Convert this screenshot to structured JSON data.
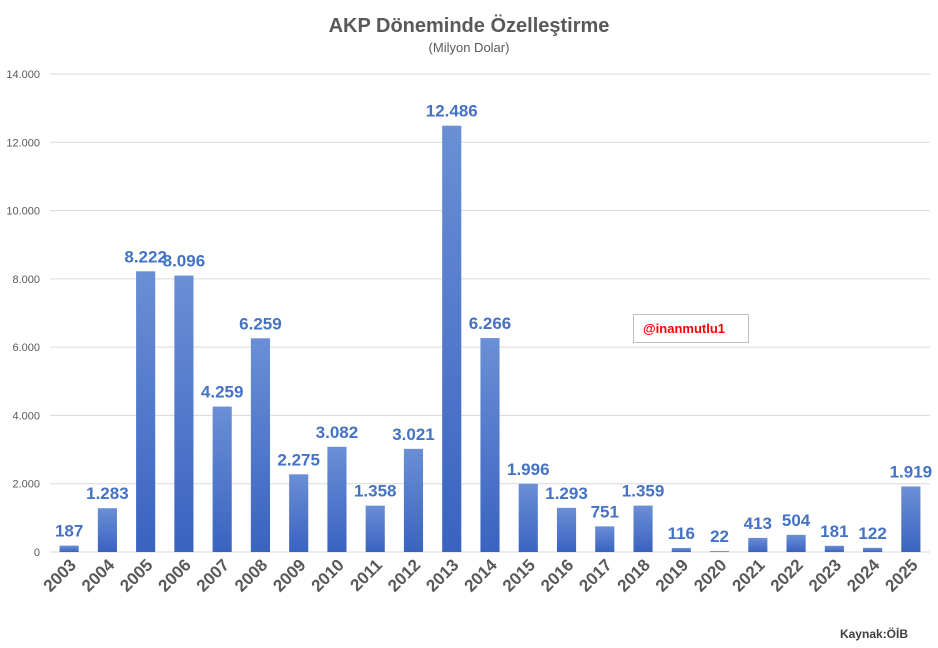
{
  "chart_data": {
    "type": "bar",
    "title": "AKP Döneminde Özelleştirme",
    "subtitle": "(Milyon Dolar)",
    "categories": [
      "2003",
      "2004",
      "2005",
      "2006",
      "2007",
      "2008",
      "2009",
      "2010",
      "2011",
      "2012",
      "2013",
      "2014",
      "2015",
      "2016",
      "2017",
      "2018",
      "2019",
      "2020",
      "2021",
      "2022",
      "2023",
      "2024",
      "2025"
    ],
    "values": [
      187,
      1283,
      8222,
      8096,
      4259,
      6259,
      2275,
      3082,
      1358,
      3021,
      12486,
      6266,
      1996,
      1293,
      751,
      1359,
      116,
      22,
      413,
      504,
      181,
      122,
      1919
    ],
    "value_labels": [
      "187",
      "1.283",
      "8.222",
      "8.096",
      "4.259",
      "6.259",
      "2.275",
      "3.082",
      "1.358",
      "3.021",
      "12.486",
      "6.266",
      "1.996",
      "1.293",
      "751",
      "1.359",
      "116",
      "22",
      "413",
      "504",
      "181",
      "122",
      "1.919"
    ],
    "yticks": [
      0,
      2000,
      4000,
      6000,
      8000,
      10000,
      12000,
      14000
    ],
    "ytick_labels": [
      "0",
      "2.000",
      "4.000",
      "6.000",
      "8.000",
      "10.000",
      "12.000",
      "14.000"
    ],
    "ylim": [
      0,
      14000
    ],
    "grid": true,
    "legend": "none",
    "colors": {
      "bar_top": "#6a8fd6",
      "bar_bottom": "#3a63c0",
      "label": "#4472c4",
      "grid": "#d9d9d9",
      "text": "#595959"
    }
  },
  "watermark": "@inanmutlu1",
  "source": "Kaynak:ÖİB"
}
